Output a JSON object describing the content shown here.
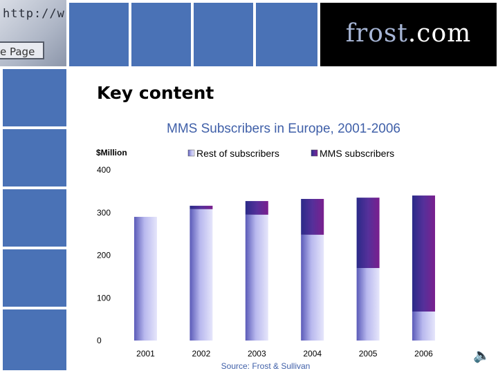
{
  "header": {
    "browser_url_text": "http://w",
    "browser_button_text": "e Page",
    "logo_part1": "frost",
    "logo_part2": ".com"
  },
  "heading": "Key content",
  "speaker_icon": "speaker-icon",
  "chart_data": {
    "type": "bar",
    "stacked": true,
    "title": "MMS Subscribers in Europe, 2001-2006",
    "ylabel": "$Million",
    "xlabel": "",
    "ylim": [
      0,
      400
    ],
    "yticks": [
      0,
      100,
      200,
      300,
      400
    ],
    "categories": [
      "2001",
      "2002",
      "2003",
      "2004",
      "2005",
      "2006"
    ],
    "series": [
      {
        "name": "Rest of subscribers",
        "values": [
          290,
          308,
          295,
          248,
          170,
          68
        ],
        "color": "#b0b0ec"
      },
      {
        "name": "MMS subscribers",
        "values": [
          0,
          8,
          32,
          84,
          165,
          272
        ],
        "color": "#5c2a98"
      }
    ],
    "legend_position": "top",
    "source": "Source: Frost & Sullivan"
  }
}
